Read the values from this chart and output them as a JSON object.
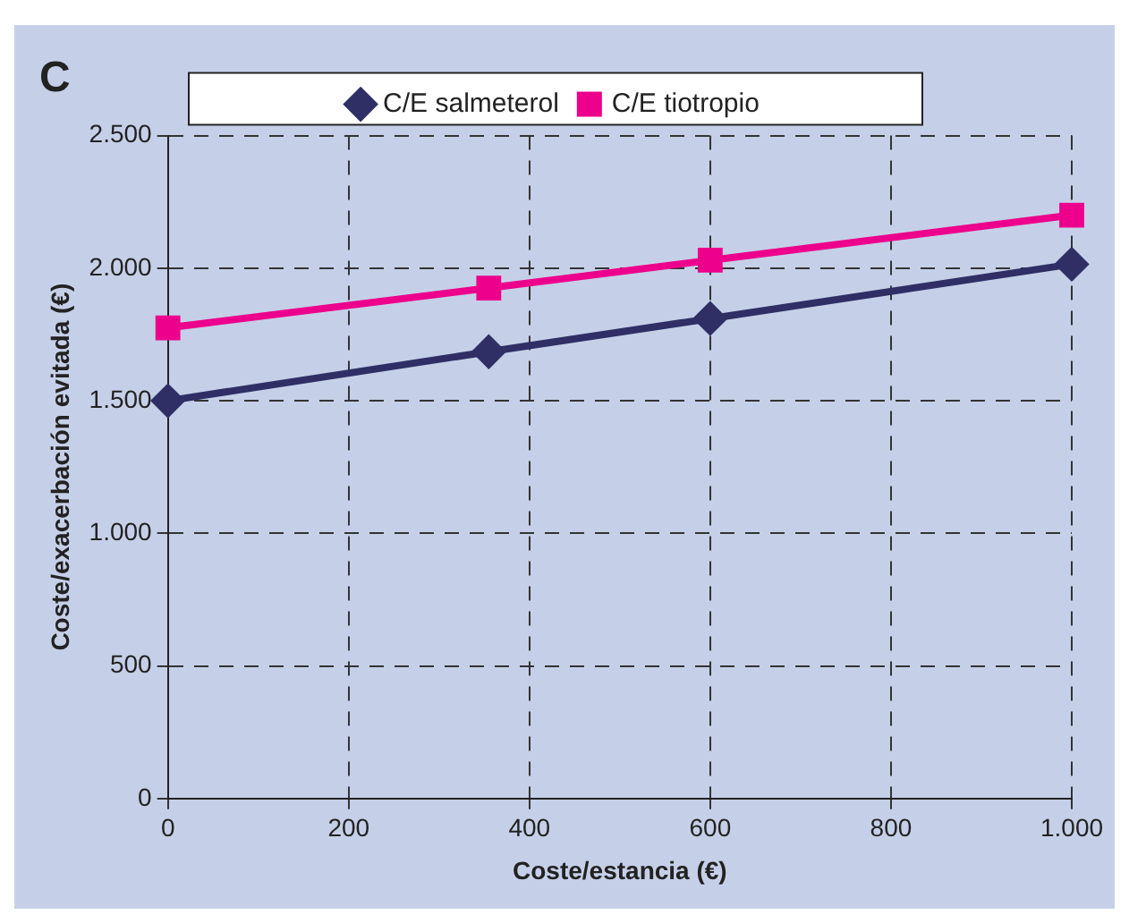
{
  "chart_data": {
    "type": "line",
    "title": "C",
    "xlabel": "Coste/estancia (€)",
    "ylabel": "Coste/exacerbación evitada (€)",
    "xlim": [
      0,
      1000
    ],
    "xticks": [
      0,
      200,
      400,
      600,
      800,
      {
        "value": 1000,
        "label": "1.000"
      }
    ],
    "ylim": [
      0,
      2500
    ],
    "yticks": [
      0,
      500,
      {
        "value": 1000,
        "label": "1.000"
      },
      {
        "value": 1500,
        "label": "1.500"
      },
      {
        "value": 2000,
        "label": "2.000"
      },
      {
        "value": 2500,
        "label": "2.500"
      }
    ],
    "grid": true,
    "legend": "top",
    "line_style": "solid",
    "series": [
      {
        "name": "C/E salmeterol",
        "color": "#2f2f66",
        "marker": "diamond",
        "x": [
          0,
          355,
          600,
          1000
        ],
        "values": [
          1500,
          1685,
          1810,
          2015
        ]
      },
      {
        "name": "C/E tiotropio",
        "color": "#ec008c",
        "marker": "square",
        "x": [
          0,
          355,
          600,
          1000
        ],
        "values": [
          1775,
          1925,
          2030,
          2200
        ]
      }
    ]
  }
}
